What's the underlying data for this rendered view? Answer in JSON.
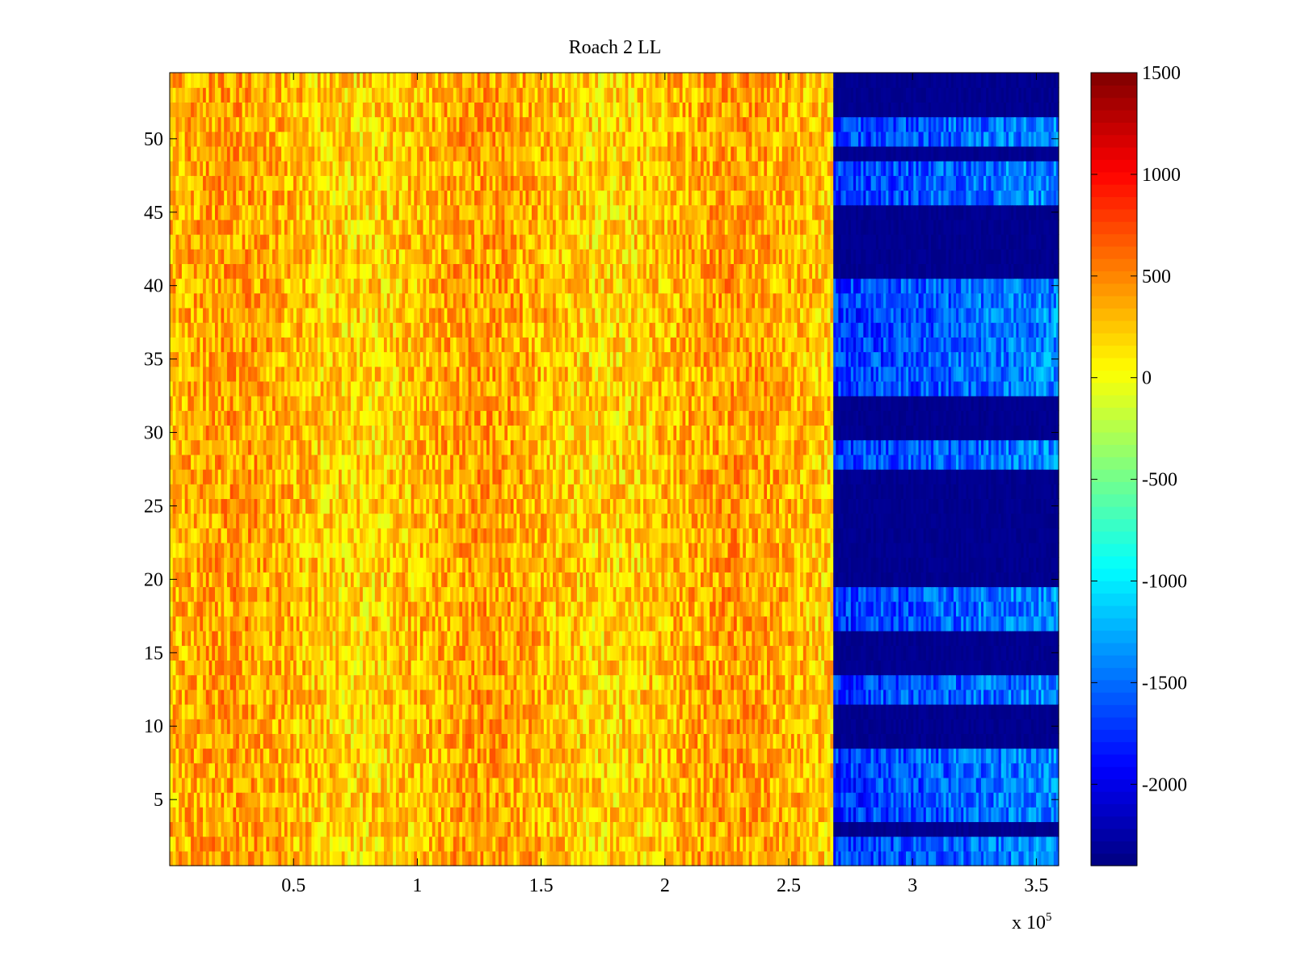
{
  "chart_data": {
    "type": "heatmap",
    "title": "Roach 2 LL",
    "xlabel": "",
    "ylabel": "",
    "x_exponent_label": "x 10",
    "x_exponent_power": "5",
    "xlim": [
      0,
      3.59
    ],
    "ylim": [
      0.5,
      54.5
    ],
    "x_ticks": [
      0.5,
      1,
      1.5,
      2,
      2.5,
      3,
      3.5
    ],
    "x_tick_labels": [
      "0.5",
      "1",
      "1.5",
      "2",
      "2.5",
      "3",
      "3.5"
    ],
    "y_ticks": [
      5,
      10,
      15,
      20,
      25,
      30,
      35,
      40,
      45,
      50
    ],
    "y_tick_labels": [
      "5",
      "10",
      "15",
      "20",
      "25",
      "30",
      "35",
      "40",
      "45",
      "50"
    ],
    "rows": 54,
    "colormap": "jet",
    "clim": [
      -2400,
      1500
    ],
    "colorbar_ticks": [
      1500,
      1000,
      500,
      0,
      -500,
      -1000,
      -1500,
      -2000
    ],
    "colorbar_tick_labels": [
      "1500",
      "1000",
      "500",
      "0",
      "-500",
      "-1000",
      "-1500",
      "-2000"
    ],
    "regions": [
      {
        "x_range": [
          0,
          2.68
        ],
        "typical_value": 300,
        "description": "active"
      },
      {
        "x_range": [
          2.68,
          3.59
        ],
        "typical_value": -2300,
        "description": "low"
      }
    ],
    "low_region_bright_rows": [
      1,
      2,
      4,
      5,
      6,
      7,
      8,
      12,
      13,
      17,
      18,
      19,
      28,
      29,
      33,
      34,
      35,
      36,
      37,
      38,
      39,
      40,
      46,
      47,
      48,
      50,
      51
    ],
    "grid": false,
    "colors": {
      "background": "#ffffff",
      "axis": "#000000"
    }
  }
}
